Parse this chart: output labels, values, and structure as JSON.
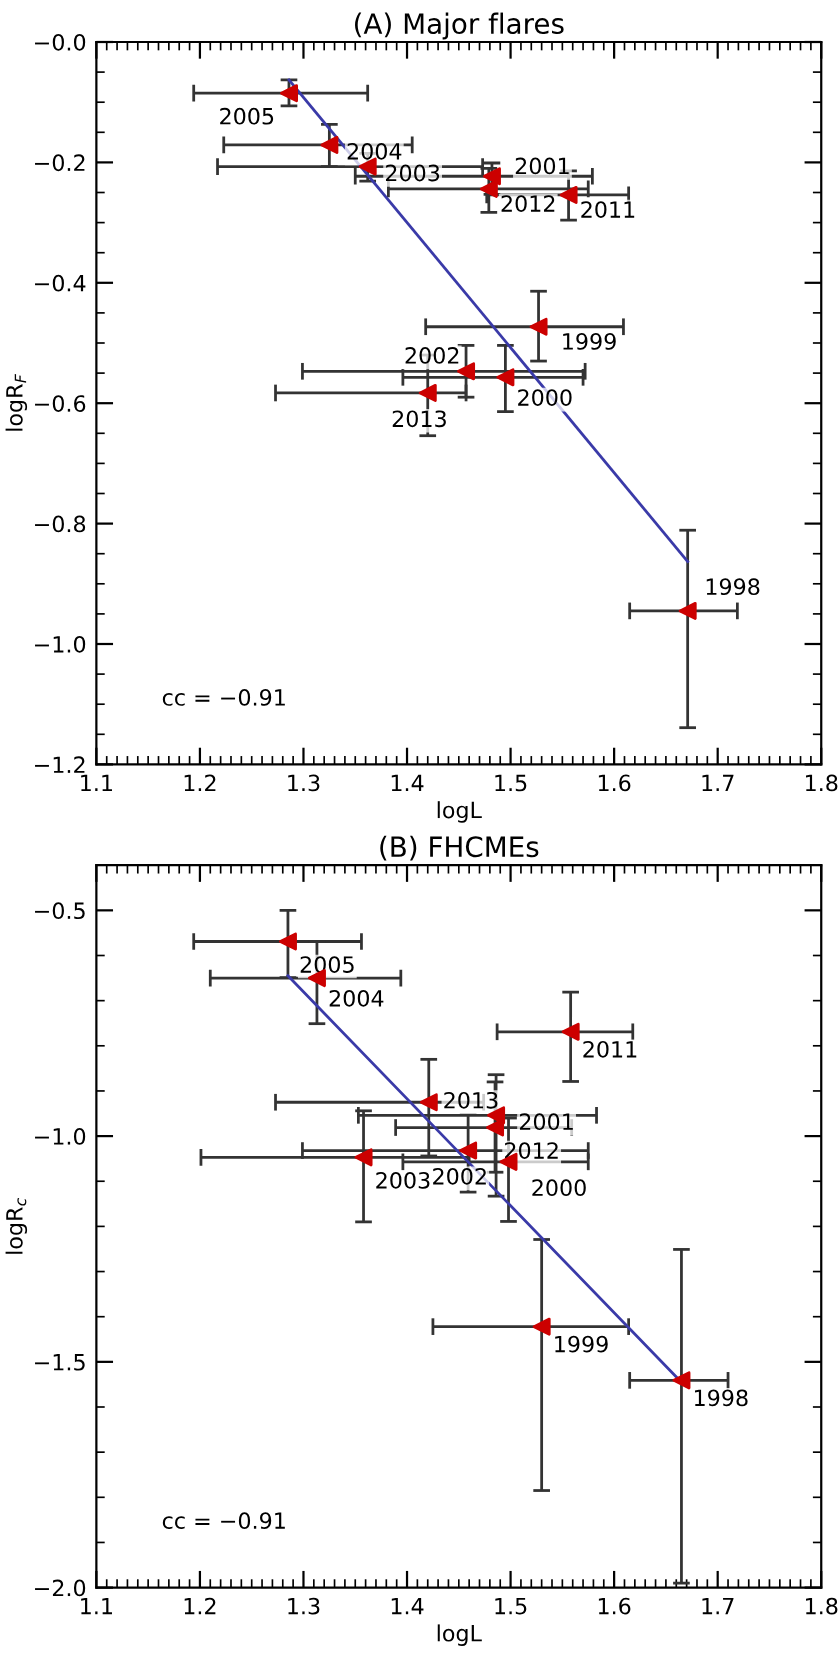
{
  "chart_data": [
    {
      "type": "scatter",
      "title": "(A) Major flares",
      "xlabel": "logL",
      "ylabel": "logR$_{F}$",
      "xlim": [
        1.1,
        1.8
      ],
      "xticks": [
        1.1,
        1.2,
        1.3,
        1.4,
        1.5,
        1.6,
        1.7,
        1.8
      ],
      "ylim": [
        -1.2,
        0.0
      ],
      "yticks": [
        {
          "value": -1.2,
          "label": "−1.2"
        },
        {
          "value": -1.0,
          "label": "−1.0"
        },
        {
          "value": -0.8,
          "label": "−0.8"
        },
        {
          "value": -0.6,
          "label": "−0.6"
        },
        {
          "value": -0.4,
          "label": "−0.4"
        },
        {
          "value": -0.2,
          "label": "−0.2"
        },
        {
          "value": 0.0,
          "label": "−0.0"
        }
      ],
      "grid": false,
      "legend": false,
      "series": [
        {
          "marker": "triangle",
          "color": "#cc0000",
          "x": [
            1.286,
            1.325,
            1.362,
            1.482,
            1.479,
            1.556,
            1.527,
            1.457,
            1.495,
            1.42,
            1.671
          ],
          "values": [
            -0.085,
            -0.171,
            -0.207,
            -0.223,
            -0.244,
            -0.254,
            -0.473,
            -0.547,
            -0.557,
            -0.583,
            -0.945
          ],
          "errors": [
            [
              -0.106,
              -0.063
            ],
            [
              -0.207,
              -0.137
            ],
            [
              -0.231,
              -0.185
            ],
            [
              -0.253,
              -0.201
            ],
            [
              -0.283,
              -0.21
            ],
            [
              -0.296,
              -0.214
            ],
            [
              -0.53,
              -0.414
            ],
            [
              -0.59,
              -0.504
            ],
            [
              -0.614,
              -0.504
            ],
            [
              -0.654,
              -0.52
            ],
            [
              -1.139,
              -0.811
            ]
          ],
          "xerrors": [
            [
              1.194,
              1.362
            ],
            [
              1.223,
              1.405
            ],
            [
              1.217,
              1.473
            ],
            [
              1.35,
              1.579
            ],
            [
              1.382,
              1.575
            ],
            [
              1.477,
              1.614
            ],
            [
              1.418,
              1.609
            ],
            [
              1.299,
              1.572
            ],
            [
              1.396,
              1.57
            ],
            [
              1.273,
              1.457
            ],
            [
              1.615,
              1.719
            ]
          ]
        },
        {
          "type": "line",
          "color": "#3a3aa8",
          "x": [
            1.286,
            1.671
          ],
          "values": [
            -0.063,
            -0.863
          ]
        }
      ],
      "annotations": [
        {
          "text": "2005",
          "x": 1.286,
          "y": -0.085
        },
        {
          "text": "2004",
          "x": 1.325,
          "y": -0.171
        },
        {
          "text": "2003",
          "x": 1.362,
          "y": -0.207
        },
        {
          "text": "2001",
          "x": 1.482,
          "y": -0.223
        },
        {
          "text": "2012",
          "x": 1.479,
          "y": -0.244
        },
        {
          "text": "2011",
          "x": 1.556,
          "y": -0.254
        },
        {
          "text": "1999",
          "x": 1.527,
          "y": -0.473
        },
        {
          "text": "2002",
          "x": 1.457,
          "y": -0.547
        },
        {
          "text": "2000",
          "x": 1.495,
          "y": -0.557
        },
        {
          "text": "2013",
          "x": 1.42,
          "y": -0.583
        },
        {
          "text": "1998",
          "x": 1.671,
          "y": -0.945
        },
        "cc = −0.91"
      ]
    },
    {
      "type": "scatter",
      "title": "(B) FHCMEs",
      "xlabel": "logL",
      "ylabel": "logR$_{c}$",
      "xlim": [
        1.1,
        1.8
      ],
      "xticks": [
        1.1,
        1.2,
        1.3,
        1.4,
        1.5,
        1.6,
        1.7,
        1.8
      ],
      "ylim": [
        -2.0,
        -0.4
      ],
      "yticks": [
        {
          "value": -2.0,
          "label": "−2.0"
        },
        {
          "value": -1.5,
          "label": "−1.5"
        },
        {
          "value": -1.0,
          "label": "−1.0"
        },
        {
          "value": -0.5,
          "label": "−0.5"
        }
      ],
      "grid": false,
      "legend": false,
      "series": [
        {
          "marker": "triangle",
          "color": "#cc0000",
          "x": [
            1.285,
            1.313,
            1.558,
            1.421,
            1.486,
            1.485,
            1.459,
            1.358,
            1.498,
            1.53,
            1.665
          ],
          "values": [
            -0.569,
            -0.65,
            -0.769,
            -0.925,
            -0.954,
            -0.981,
            -1.032,
            -1.047,
            -1.057,
            -1.422,
            -1.541
          ],
          "errors": [
            [
              -0.649,
              -0.5
            ],
            [
              -0.751,
              -0.569
            ],
            [
              -0.879,
              -0.681
            ],
            [
              -1.044,
              -0.83
            ],
            [
              -1.133,
              -0.864
            ],
            [
              -1.08,
              -0.88
            ],
            [
              -1.124,
              -0.952
            ],
            [
              -1.19,
              -0.944
            ],
            [
              -1.189,
              -0.96
            ],
            [
              -1.785,
              -1.229
            ],
            [
              -1.99,
              -1.251
            ]
          ],
          "xerrors": [
            [
              1.194,
              1.356
            ],
            [
              1.21,
              1.394
            ],
            [
              1.487,
              1.618
            ],
            [
              1.273,
              1.474
            ],
            [
              1.353,
              1.583
            ],
            [
              1.389,
              1.559
            ],
            [
              1.299,
              1.575
            ],
            [
              1.201,
              1.46
            ],
            [
              1.396,
              1.575
            ],
            [
              1.425,
              1.614
            ],
            [
              1.615,
              1.71
            ]
          ]
        },
        {
          "type": "line",
          "color": "#3a3aa8",
          "x": [
            1.285,
            1.665
          ],
          "values": [
            -0.645,
            -1.545
          ]
        }
      ],
      "annotations": [
        {
          "text": "2005",
          "x": 1.285,
          "y": -0.569
        },
        {
          "text": "2004",
          "x": 1.313,
          "y": -0.65
        },
        {
          "text": "2011",
          "x": 1.558,
          "y": -0.769
        },
        {
          "text": "2013",
          "x": 1.421,
          "y": -0.925
        },
        {
          "text": "2001",
          "x": 1.486,
          "y": -0.954
        },
        {
          "text": "2012",
          "x": 1.485,
          "y": -0.981
        },
        {
          "text": "2002",
          "x": 1.459,
          "y": -1.032
        },
        {
          "text": "2003",
          "x": 1.358,
          "y": -1.047
        },
        {
          "text": "2000",
          "x": 1.498,
          "y": -1.057
        },
        {
          "text": "1999",
          "x": 1.53,
          "y": -1.422
        },
        {
          "text": "1998",
          "x": 1.665,
          "y": -1.541
        },
        "cc = −0.91"
      ]
    }
  ]
}
